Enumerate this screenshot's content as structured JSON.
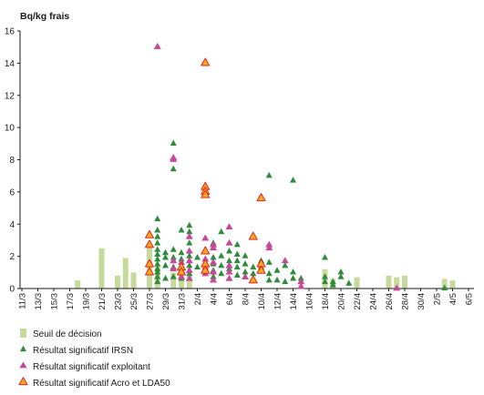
{
  "chart_data": {
    "type": "scatter",
    "ylabel": "Bq/kg frais",
    "ylim": [
      0,
      16
    ],
    "yticks": [
      0,
      2,
      4,
      6,
      8,
      10,
      12,
      14,
      16
    ],
    "xlim": [
      "11/3",
      "6/5"
    ],
    "x_tick_labels": [
      "11/3",
      "13/3",
      "15/3",
      "17/3",
      "19/3",
      "21/3",
      "23/3",
      "25/3",
      "27/3",
      "29/3",
      "31/3",
      "2/4",
      "4/4",
      "6/4",
      "8/4",
      "10/4",
      "12/4",
      "14/4",
      "16/4",
      "18/4",
      "20/4",
      "22/4",
      "24/4",
      "26/4",
      "28/4",
      "30/4",
      "2/5",
      "4/5",
      "6/5"
    ],
    "grid": false,
    "legend": {
      "position": "bottom-left"
    },
    "series": [
      {
        "name": "Seuil de décision",
        "kind": "bar",
        "color": "#c8d99c",
        "points": [
          [
            "18/3",
            0.5
          ],
          [
            "21/3",
            2.5
          ],
          [
            "23/3",
            0.8
          ],
          [
            "24/3",
            1.9
          ],
          [
            "25/3",
            1.0
          ],
          [
            "27/3",
            2.6
          ],
          [
            "28/3",
            1.4
          ],
          [
            "30/3",
            1.0
          ],
          [
            "31/3",
            1.2
          ],
          [
            "1/4",
            0.9
          ],
          [
            "18/4",
            1.2
          ],
          [
            "19/4",
            0.6
          ],
          [
            "22/4",
            0.7
          ],
          [
            "26/4",
            0.8
          ],
          [
            "27/4",
            0.7
          ],
          [
            "28/4",
            0.8
          ],
          [
            "3/5",
            0.6
          ],
          [
            "4/5",
            0.5
          ]
        ]
      },
      {
        "name": "Résultat significatif IRSN",
        "kind": "scatter",
        "marker": "triangle",
        "color": "#2e8b3c",
        "points": [
          [
            "28/3",
            4.3
          ],
          [
            "28/3",
            3.6
          ],
          [
            "28/3",
            3.2
          ],
          [
            "28/3",
            2.8
          ],
          [
            "28/3",
            2.4
          ],
          [
            "28/3",
            2.1
          ],
          [
            "28/3",
            1.8
          ],
          [
            "28/3",
            1.5
          ],
          [
            "28/3",
            1.2
          ],
          [
            "28/3",
            1.0
          ],
          [
            "28/3",
            0.7
          ],
          [
            "28/3",
            0.4
          ],
          [
            "29/3",
            2.2
          ],
          [
            "29/3",
            1.9
          ],
          [
            "29/3",
            1.4
          ],
          [
            "29/3",
            0.6
          ],
          [
            "30/3",
            9.0
          ],
          [
            "30/3",
            7.4
          ],
          [
            "30/3",
            2.4
          ],
          [
            "30/3",
            1.9
          ],
          [
            "30/3",
            1.3
          ],
          [
            "30/3",
            0.7
          ],
          [
            "31/3",
            3.6
          ],
          [
            "31/3",
            2.2
          ],
          [
            "31/3",
            1.8
          ],
          [
            "31/3",
            1.1
          ],
          [
            "31/3",
            0.6
          ],
          [
            "1/4",
            3.9
          ],
          [
            "1/4",
            3.5
          ],
          [
            "1/4",
            2.8
          ],
          [
            "1/4",
            2.0
          ],
          [
            "1/4",
            1.4
          ],
          [
            "1/4",
            0.9
          ],
          [
            "2/4",
            1.9
          ],
          [
            "2/4",
            1.3
          ],
          [
            "4/4",
            2.8
          ],
          [
            "4/4",
            1.9
          ],
          [
            "4/4",
            1.5
          ],
          [
            "4/4",
            1.1
          ],
          [
            "4/4",
            0.7
          ],
          [
            "5/4",
            3.5
          ],
          [
            "5/4",
            2.0
          ],
          [
            "5/4",
            1.4
          ],
          [
            "5/4",
            0.9
          ],
          [
            "6/4",
            2.3
          ],
          [
            "6/4",
            1.7
          ],
          [
            "6/4",
            1.2
          ],
          [
            "7/4",
            2.7
          ],
          [
            "7/4",
            2.1
          ],
          [
            "7/4",
            1.7
          ],
          [
            "7/4",
            1.3
          ],
          [
            "7/4",
            0.8
          ],
          [
            "8/4",
            2.0
          ],
          [
            "8/4",
            1.5
          ],
          [
            "8/4",
            1.0
          ],
          [
            "9/4",
            1.3
          ],
          [
            "9/4",
            0.9
          ],
          [
            "10/4",
            1.7
          ],
          [
            "10/4",
            1.3
          ],
          [
            "11/4",
            7.0
          ],
          [
            "11/4",
            1.6
          ],
          [
            "11/4",
            0.9
          ],
          [
            "11/4",
            0.5
          ],
          [
            "12/4",
            1.1
          ],
          [
            "12/4",
            0.5
          ],
          [
            "13/4",
            1.4
          ],
          [
            "13/4",
            0.4
          ],
          [
            "14/4",
            6.7
          ],
          [
            "14/4",
            1.0
          ],
          [
            "14/4",
            0.6
          ],
          [
            "15/4",
            0.6
          ],
          [
            "18/4",
            1.9
          ],
          [
            "18/4",
            0.7
          ],
          [
            "18/4",
            0.4
          ],
          [
            "19/4",
            0.4
          ],
          [
            "19/4",
            0.2
          ],
          [
            "20/4",
            1.0
          ],
          [
            "20/4",
            0.7
          ],
          [
            "21/4",
            0.3
          ],
          [
            "3/5",
            0.0
          ]
        ]
      },
      {
        "name": "Résultat significatif exploitant",
        "kind": "scatter",
        "marker": "triangle",
        "color": "#c6489b",
        "points": [
          [
            "28/3",
            15.0
          ],
          [
            "30/3",
            8.1
          ],
          [
            "30/3",
            8.0
          ],
          [
            "30/3",
            1.7
          ],
          [
            "30/3",
            1.2
          ],
          [
            "31/3",
            1.6
          ],
          [
            "31/3",
            1.1
          ],
          [
            "31/3",
            0.7
          ],
          [
            "1/4",
            3.2
          ],
          [
            "1/4",
            2.3
          ],
          [
            "1/4",
            1.7
          ],
          [
            "1/4",
            1.1
          ],
          [
            "1/4",
            0.6
          ],
          [
            "3/4",
            3.1
          ],
          [
            "3/4",
            1.8
          ],
          [
            "3/4",
            1.3
          ],
          [
            "3/4",
            0.9
          ],
          [
            "4/4",
            2.7
          ],
          [
            "4/4",
            2.5
          ],
          [
            "4/4",
            1.6
          ],
          [
            "4/4",
            1.0
          ],
          [
            "4/4",
            0.5
          ],
          [
            "6/4",
            3.8
          ],
          [
            "6/4",
            2.8
          ],
          [
            "6/4",
            1.4
          ],
          [
            "6/4",
            1.0
          ],
          [
            "6/4",
            0.6
          ],
          [
            "8/4",
            0.7
          ],
          [
            "11/4",
            2.7
          ],
          [
            "11/4",
            2.5
          ],
          [
            "13/4",
            1.7
          ],
          [
            "15/4",
            0.4
          ],
          [
            "15/4",
            0.1
          ],
          [
            "27/4",
            0.0
          ]
        ]
      },
      {
        "name": "Résultat significatif Acro et LDA50",
        "kind": "scatter",
        "marker": "triangle",
        "color": "#f9a825",
        "edge_color": "#e2261d",
        "points": [
          [
            "27/3",
            3.3
          ],
          [
            "27/3",
            2.7
          ],
          [
            "27/3",
            1.5
          ],
          [
            "27/3",
            1.0
          ],
          [
            "31/3",
            1.3
          ],
          [
            "31/3",
            1.0
          ],
          [
            "3/4",
            14.0
          ],
          [
            "3/4",
            6.3
          ],
          [
            "3/4",
            6.0
          ],
          [
            "3/4",
            5.8
          ],
          [
            "3/4",
            2.3
          ],
          [
            "3/4",
            1.5
          ],
          [
            "3/4",
            1.1
          ],
          [
            "9/4",
            3.2
          ],
          [
            "9/4",
            0.5
          ],
          [
            "10/4",
            5.6
          ],
          [
            "10/4",
            1.5
          ],
          [
            "10/4",
            1.1
          ]
        ]
      }
    ]
  }
}
